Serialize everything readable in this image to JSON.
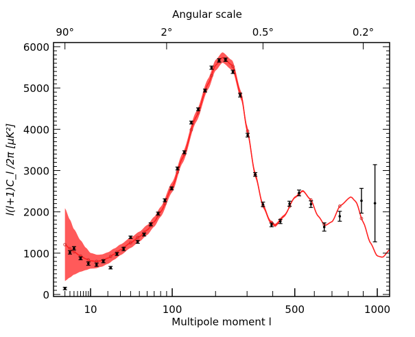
{
  "chart_data": {
    "type": "scatter",
    "title": "",
    "top_axis_title": "Angular scale",
    "xlabel": "Multipole moment l",
    "ylabel": "l(l+1)C_l /2π [μK²]",
    "xscale": "power-0.4",
    "xlim": [
      0.55,
      1093
    ],
    "ylim": [
      -50,
      6100
    ],
    "yticks": [
      0,
      1000,
      2000,
      3000,
      4000,
      5000,
      6000
    ],
    "ytick_labels": [
      "0",
      "1000",
      "2000",
      "3000",
      "4000",
      "5000",
      "6000"
    ],
    "xticks_major": [
      10,
      100,
      500,
      1000
    ],
    "xtick_labels": [
      "10",
      "100",
      "500",
      "1000"
    ],
    "xticks_minor": [
      2,
      3,
      4,
      5,
      6,
      7,
      8,
      9,
      20,
      30,
      40,
      50,
      60,
      70,
      80,
      90,
      200,
      300,
      400,
      600,
      700,
      800,
      900
    ],
    "top_ticks_l": [
      2,
      90,
      360,
      900
    ],
    "top_tick_labels": [
      "90°",
      "2°",
      "0.5°",
      "0.2°"
    ],
    "colors": {
      "model": "#ff2020",
      "band": "#ff5a5a",
      "data": "#000000"
    },
    "data_points": [
      {
        "l": 2,
        "v": 144,
        "err": 30
      },
      {
        "l": 3,
        "v": 1018,
        "err": 40
      },
      {
        "l": 4,
        "v": 1118,
        "err": 40
      },
      {
        "l": 6,
        "v": 875,
        "err": 35
      },
      {
        "l": 9,
        "v": 747,
        "err": 40
      },
      {
        "l": 13,
        "v": 720,
        "err": 40
      },
      {
        "l": 17,
        "v": 803,
        "err": 35
      },
      {
        "l": 22,
        "v": 648,
        "err": 30
      },
      {
        "l": 27,
        "v": 980,
        "err": 35
      },
      {
        "l": 33,
        "v": 1101,
        "err": 40
      },
      {
        "l": 40,
        "v": 1384,
        "err": 30
      },
      {
        "l": 48,
        "v": 1273,
        "err": 35
      },
      {
        "l": 56,
        "v": 1450,
        "err": 35
      },
      {
        "l": 65,
        "v": 1699,
        "err": 35
      },
      {
        "l": 76,
        "v": 1959,
        "err": 35
      },
      {
        "l": 87,
        "v": 2280,
        "err": 35
      },
      {
        "l": 99,
        "v": 2568,
        "err": 35
      },
      {
        "l": 110,
        "v": 3050,
        "err": 35
      },
      {
        "l": 124,
        "v": 3443,
        "err": 35
      },
      {
        "l": 139,
        "v": 4163,
        "err": 35
      },
      {
        "l": 155,
        "v": 4484,
        "err": 35
      },
      {
        "l": 172,
        "v": 4937,
        "err": 35
      },
      {
        "l": 189,
        "v": 5491,
        "err": 40
      },
      {
        "l": 210,
        "v": 5668,
        "err": 40
      },
      {
        "l": 229,
        "v": 5685,
        "err": 40
      },
      {
        "l": 252,
        "v": 5391,
        "err": 40
      },
      {
        "l": 276,
        "v": 4827,
        "err": 45
      },
      {
        "l": 302,
        "v": 3858,
        "err": 45
      },
      {
        "l": 330,
        "v": 2906,
        "err": 45
      },
      {
        "l": 360,
        "v": 2181,
        "err": 55
      },
      {
        "l": 395,
        "v": 1683,
        "err": 45
      },
      {
        "l": 433,
        "v": 1766,
        "err": 50
      },
      {
        "l": 475,
        "v": 2197,
        "err": 60
      },
      {
        "l": 521,
        "v": 2458,
        "err": 70
      },
      {
        "l": 582,
        "v": 2186,
        "err": 80
      },
      {
        "l": 655,
        "v": 1633,
        "err": 100
      },
      {
        "l": 747,
        "v": 1893,
        "err": 120
      },
      {
        "l": 888,
        "v": 2269,
        "err": 300
      },
      {
        "l": 983,
        "v": 2208,
        "err": 935
      }
    ],
    "model": {
      "l": [
        2,
        3,
        4,
        6,
        8,
        10,
        13,
        16,
        20,
        25,
        30,
        40,
        50,
        60,
        70,
        80,
        100,
        120,
        150,
        180,
        200,
        220,
        250,
        280,
        300,
        330,
        360,
        390,
        410,
        450,
        500,
        540,
        580,
        620,
        660,
        700,
        750,
        818,
        850,
        900,
        950,
        1000,
        1040,
        1093
      ],
      "v": [
        1207,
        1110,
        1030,
        930,
        860,
        815,
        800,
        820,
        880,
        980,
        1080,
        1250,
        1400,
        1560,
        1760,
        2000,
        2600,
        3300,
        4300,
        5100,
        5550,
        5740,
        5550,
        4800,
        4000,
        2900,
        2150,
        1760,
        1670,
        1900,
        2350,
        2510,
        2300,
        1900,
        1670,
        1760,
        2150,
        2363,
        2250,
        1750,
        1250,
        930,
        900,
        1080
      ]
    },
    "band_halfwidth": {
      "l": [
        2,
        3,
        4,
        6,
        8,
        10,
        15,
        20,
        30,
        50,
        100,
        200,
        250,
        300,
        350,
        400,
        500,
        700,
        1093
      ],
      "v": [
        880,
        700,
        550,
        380,
        270,
        190,
        150,
        140,
        130,
        120,
        120,
        130,
        120,
        90,
        60,
        40,
        25,
        10,
        0
      ]
    }
  }
}
